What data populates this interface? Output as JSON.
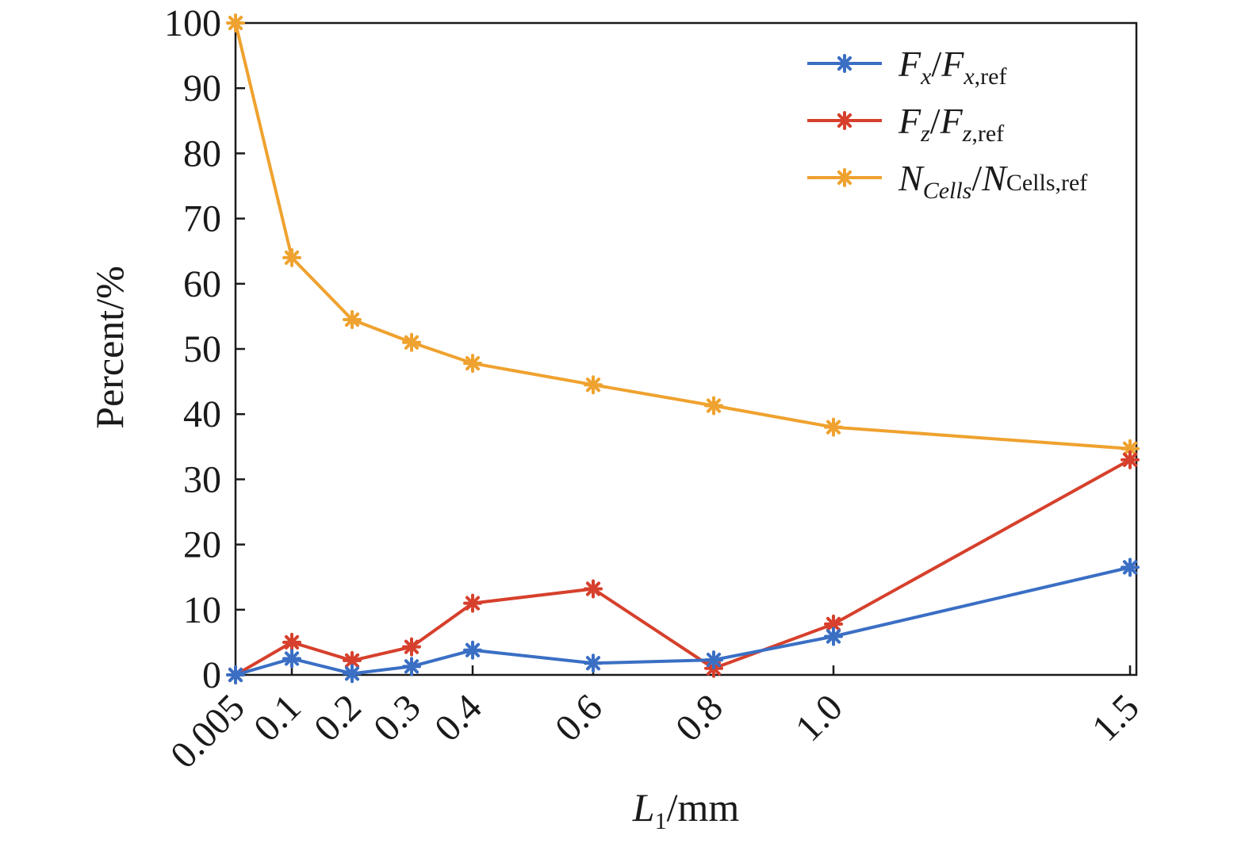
{
  "chart_data": {
    "type": "line",
    "x": [
      0.005,
      0.1,
      0.2,
      0.3,
      0.4,
      0.6,
      0.8,
      1.0,
      1.5
    ],
    "x_tick_labels": [
      "0.005",
      "0.1",
      "0.2",
      "0.3",
      "0.4",
      "0.6",
      "0.8",
      "1.0",
      "1.5"
    ],
    "y_ticks": [
      0,
      10,
      20,
      30,
      40,
      50,
      60,
      70,
      80,
      90,
      100
    ],
    "ylim": [
      0,
      100
    ],
    "xlim": [
      0.005,
      1.5
    ],
    "ylabel": "Percent/%",
    "xlabel": {
      "main": "L",
      "sub": "1",
      "unit": "/mm"
    },
    "grid": false,
    "legend_position": "top-right",
    "series": [
      {
        "name": "Fx/Fx,ref",
        "legend": {
          "a": "F",
          "a_sub": "x",
          "slash": "/",
          "b": "F",
          "b_sub_italic": "x",
          "b_sub_roman": ",ref"
        },
        "color": "#3a6fc4",
        "values": [
          0,
          2.5,
          0.2,
          1.3,
          3.8,
          1.8,
          2.3,
          5.9,
          16.5
        ]
      },
      {
        "name": "Fz/Fz,ref",
        "legend": {
          "a": "F",
          "a_sub": "z",
          "slash": "/",
          "b": "F",
          "b_sub_italic": "z",
          "b_sub_roman": ",ref"
        },
        "color": "#d6402c",
        "values": [
          0,
          5.0,
          2.2,
          4.3,
          11.0,
          13.2,
          1.0,
          7.8,
          33.0
        ]
      },
      {
        "name": "NCells/NCells,ref",
        "legend": {
          "a": "N",
          "a_sub": "Cells",
          "slash": "/",
          "b": "N",
          "b_sub_italic": "",
          "b_sub_roman": "Cells,ref"
        },
        "color": "#efa22f",
        "values": [
          100,
          64,
          54.5,
          51,
          47.8,
          44.5,
          41.3,
          38,
          34.7
        ]
      }
    ]
  }
}
